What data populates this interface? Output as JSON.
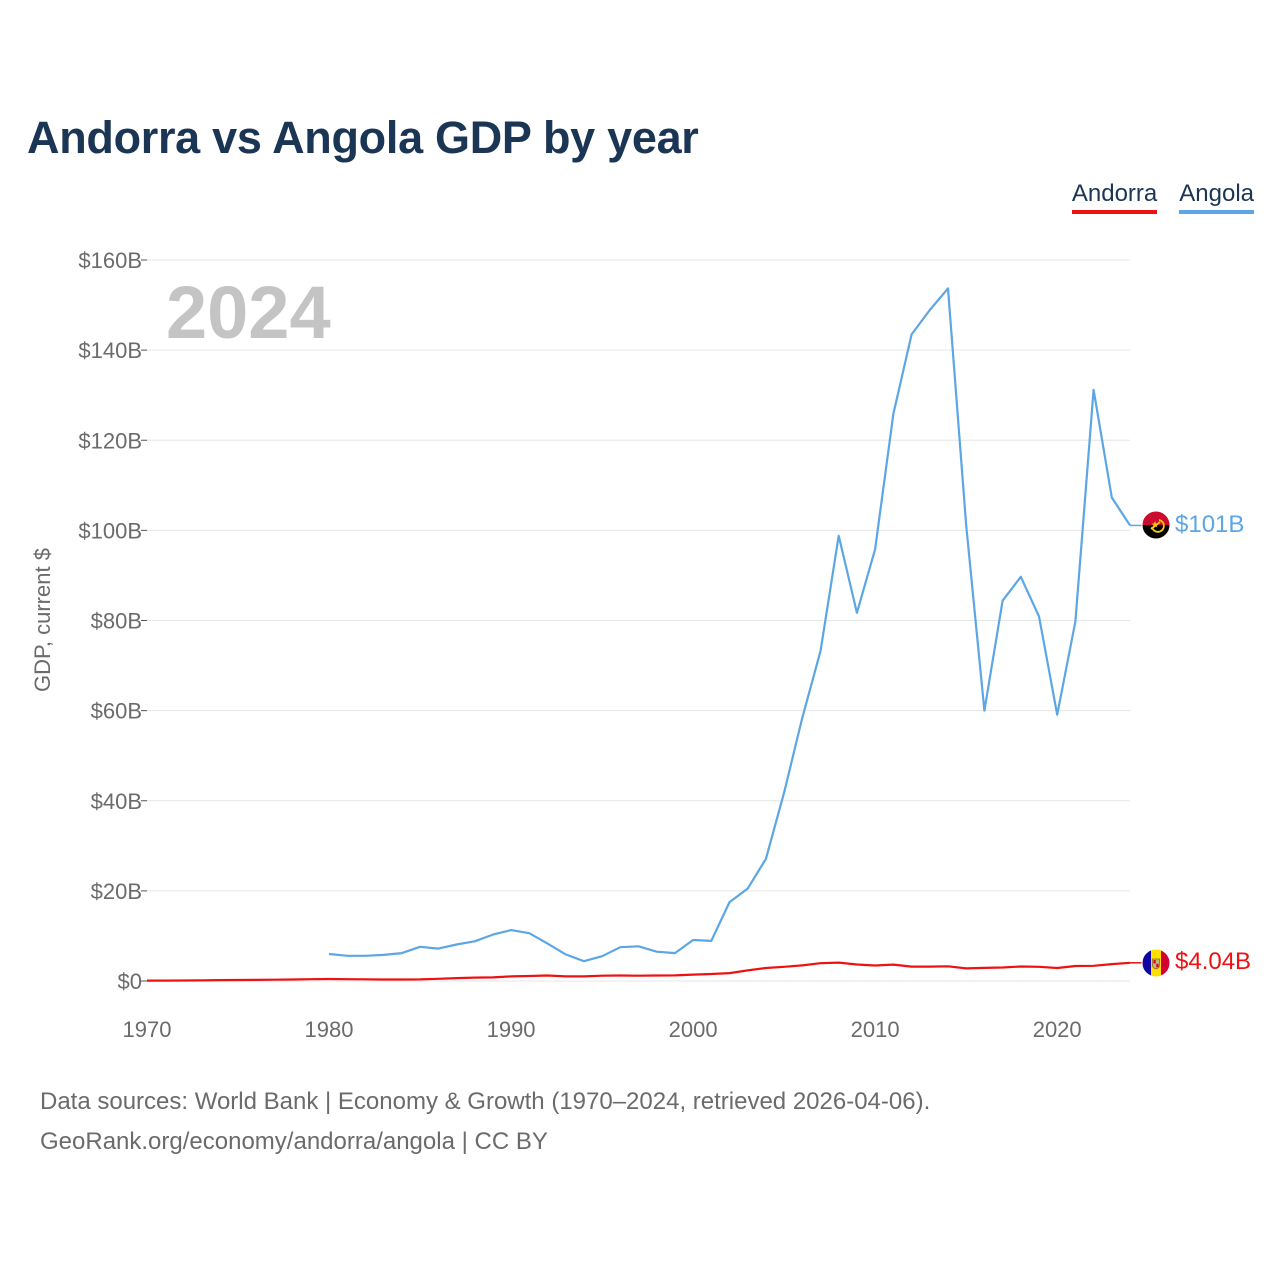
{
  "title": "Andorra vs Angola GDP by year",
  "legend": {
    "andorra": "Andorra",
    "angola": "Angola"
  },
  "colors": {
    "andorra": "#ee1111",
    "angola": "#5ca6e6",
    "title": "#1b3554"
  },
  "source": {
    "line1": "Data sources: World Bank | Economy & Growth (1970–2024, retrieved 2026-04-06).",
    "line2": "GeoRank.org/economy/andorra/angola | CC BY"
  },
  "chart_data": {
    "type": "line",
    "title": "Andorra vs Angola GDP by year",
    "year_label": "2024",
    "xlabel": "",
    "ylabel": "GDP, current $",
    "xlim": [
      1970,
      2024
    ],
    "ylim": [
      0,
      160
    ],
    "y_unit": "billion US$",
    "x_ticks": [
      1970,
      1980,
      1990,
      2000,
      2010,
      2020
    ],
    "y_ticks": [
      0,
      20,
      40,
      60,
      80,
      100,
      120,
      140,
      160
    ],
    "y_tick_labels": [
      "$0",
      "$20B",
      "$40B",
      "$60B",
      "$80B",
      "$100B",
      "$120B",
      "$140B",
      "$160B"
    ],
    "grid": true,
    "legend_position": "top-right",
    "series": [
      {
        "name": "Andorra",
        "color": "#ee1111",
        "icon": "andorra-flag-icon",
        "end_label": "$4.04B",
        "x": [
          1970,
          1971,
          1972,
          1973,
          1974,
          1975,
          1976,
          1977,
          1978,
          1979,
          1980,
          1981,
          1982,
          1983,
          1984,
          1985,
          1986,
          1987,
          1988,
          1989,
          1990,
          1991,
          1992,
          1993,
          1994,
          1995,
          1996,
          1997,
          1998,
          1999,
          2000,
          2001,
          2002,
          2003,
          2004,
          2005,
          2006,
          2007,
          2008,
          2009,
          2010,
          2011,
          2012,
          2013,
          2014,
          2015,
          2016,
          2017,
          2018,
          2019,
          2020,
          2021,
          2022,
          2023,
          2024
        ],
        "values": [
          0.08,
          0.09,
          0.11,
          0.14,
          0.19,
          0.22,
          0.24,
          0.28,
          0.34,
          0.41,
          0.45,
          0.39,
          0.37,
          0.33,
          0.33,
          0.35,
          0.48,
          0.64,
          0.76,
          0.8,
          1.03,
          1.1,
          1.21,
          1.01,
          1.02,
          1.18,
          1.22,
          1.18,
          1.21,
          1.24,
          1.43,
          1.55,
          1.76,
          2.36,
          2.89,
          3.16,
          3.46,
          3.95,
          4.08,
          3.66,
          3.45,
          3.63,
          3.19,
          3.19,
          3.27,
          2.79,
          2.9,
          3.0,
          3.22,
          3.15,
          2.89,
          3.33,
          3.38,
          3.76,
          4.04
        ]
      },
      {
        "name": "Angola",
        "color": "#5ca6e6",
        "icon": "angola-flag-icon",
        "end_label": "$101B",
        "x": [
          1980,
          1981,
          1982,
          1983,
          1984,
          1985,
          1986,
          1987,
          1988,
          1989,
          1990,
          1991,
          1992,
          1993,
          1994,
          1995,
          1996,
          1997,
          1998,
          1999,
          2000,
          2001,
          2002,
          2003,
          2004,
          2005,
          2006,
          2007,
          2008,
          2009,
          2010,
          2011,
          2012,
          2013,
          2014,
          2015,
          2016,
          2017,
          2018,
          2019,
          2020,
          2021,
          2022,
          2023,
          2024
        ],
        "values": [
          6.0,
          5.6,
          5.6,
          5.8,
          6.2,
          7.6,
          7.2,
          8.1,
          8.8,
          10.3,
          11.3,
          10.6,
          8.3,
          5.9,
          4.4,
          5.5,
          7.5,
          7.7,
          6.5,
          6.2,
          9.1,
          8.9,
          17.5,
          20.5,
          27.1,
          41.8,
          58.4,
          73.2,
          98.8,
          81.7,
          95.8,
          125.9,
          143.5,
          148.9,
          153.7,
          101.1,
          60.0,
          84.4,
          89.7,
          80.9,
          59.1,
          79.8,
          131.2,
          107.3,
          101.1
        ]
      }
    ]
  }
}
